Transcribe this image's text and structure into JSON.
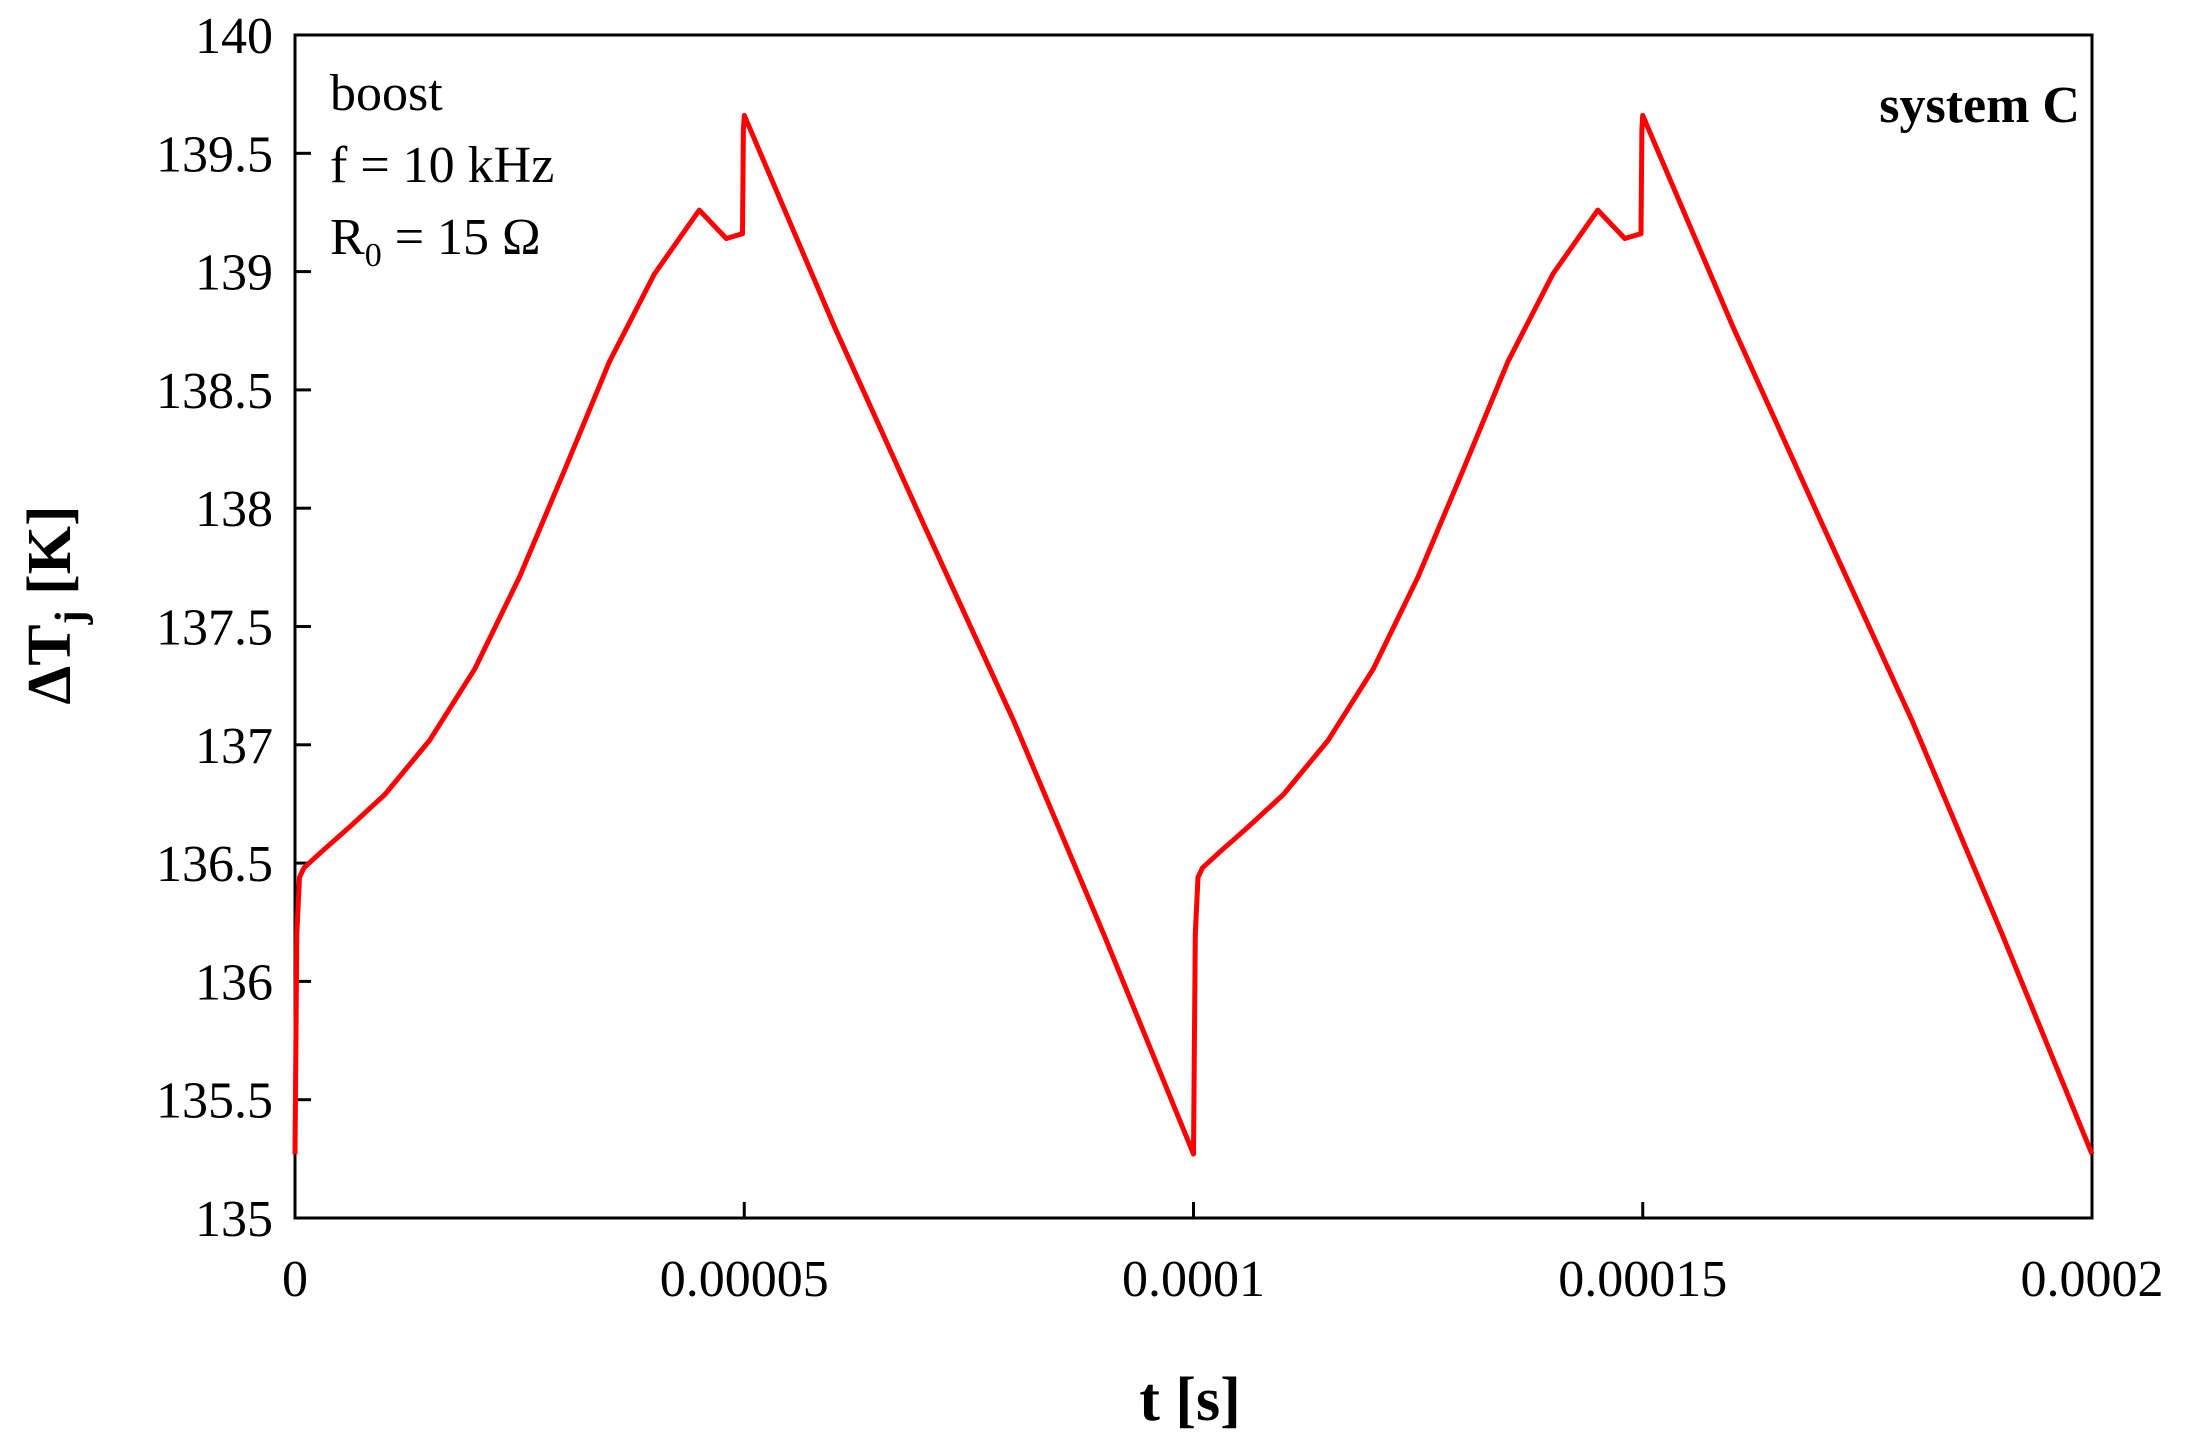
{
  "chart_data": {
    "type": "line",
    "title": "",
    "xlabel": "t [s]",
    "ylabel": "ΔT",
    "ylabel_sub": "j",
    "ylabel_unit": " [K]",
    "xlim": [
      0,
      0.0002
    ],
    "ylim": [
      135,
      140
    ],
    "x_ticks": [
      0,
      5e-05,
      0.0001,
      0.00015,
      0.0002
    ],
    "x_tick_labels": [
      "0",
      "0.00005",
      "0.0001",
      "0.00015",
      "0.0002"
    ],
    "y_ticks": [
      135,
      135.5,
      136,
      136.5,
      137,
      137.5,
      138,
      138.5,
      139,
      139.5,
      140
    ],
    "y_tick_labels": [
      "135",
      "135.5",
      "136",
      "136.5",
      "137",
      "137.5",
      "138",
      "138.5",
      "139",
      "139.5",
      "140"
    ],
    "grid": false,
    "legend": "none",
    "annotations": {
      "line1": "boost",
      "line2": "f = 10 kHz",
      "line3_main": "R",
      "line3_sub": "0",
      "line3_rest": " = 15 Ω",
      "system": "system C"
    },
    "series": [
      {
        "color": "#ff0000",
        "x": [
          0,
          2e-07,
          5e-07,
          1e-06,
          3e-06,
          6e-06,
          1e-05,
          1.5e-05,
          2e-05,
          2.5e-05,
          3e-05,
          3.5e-05,
          4e-05,
          4.5e-05,
          4.8e-05,
          4.98e-05,
          4.99e-05,
          5e-05,
          6e-05,
          7e-05,
          8e-05,
          9e-05,
          9.99e-05,
          0.0001,
          0.0001002,
          0.0001005,
          0.000101,
          0.000103,
          0.000106,
          0.00011,
          0.000115,
          0.00012,
          0.000125,
          0.00013,
          0.000135,
          0.00014,
          0.000145,
          0.000148,
          0.0001498,
          0.0001499,
          0.00015,
          0.00016,
          0.00017,
          0.00018,
          0.00019,
          0.0002
        ],
        "y": [
          135.27,
          136.2,
          136.44,
          136.48,
          136.55,
          136.65,
          136.79,
          137.02,
          137.32,
          137.71,
          138.16,
          138.62,
          138.99,
          139.26,
          139.14,
          139.16,
          139.6,
          139.66,
          138.77,
          137.93,
          137.1,
          136.2,
          135.28,
          135.27,
          136.2,
          136.44,
          136.48,
          136.55,
          136.65,
          136.79,
          137.02,
          137.32,
          137.71,
          138.16,
          138.62,
          138.99,
          139.26,
          139.14,
          139.16,
          139.6,
          139.66,
          138.77,
          137.93,
          137.1,
          136.2,
          135.27
        ]
      }
    ],
    "colors": {
      "line": "#ff0000",
      "axis": "#000000",
      "background": "#ffffff"
    }
  }
}
